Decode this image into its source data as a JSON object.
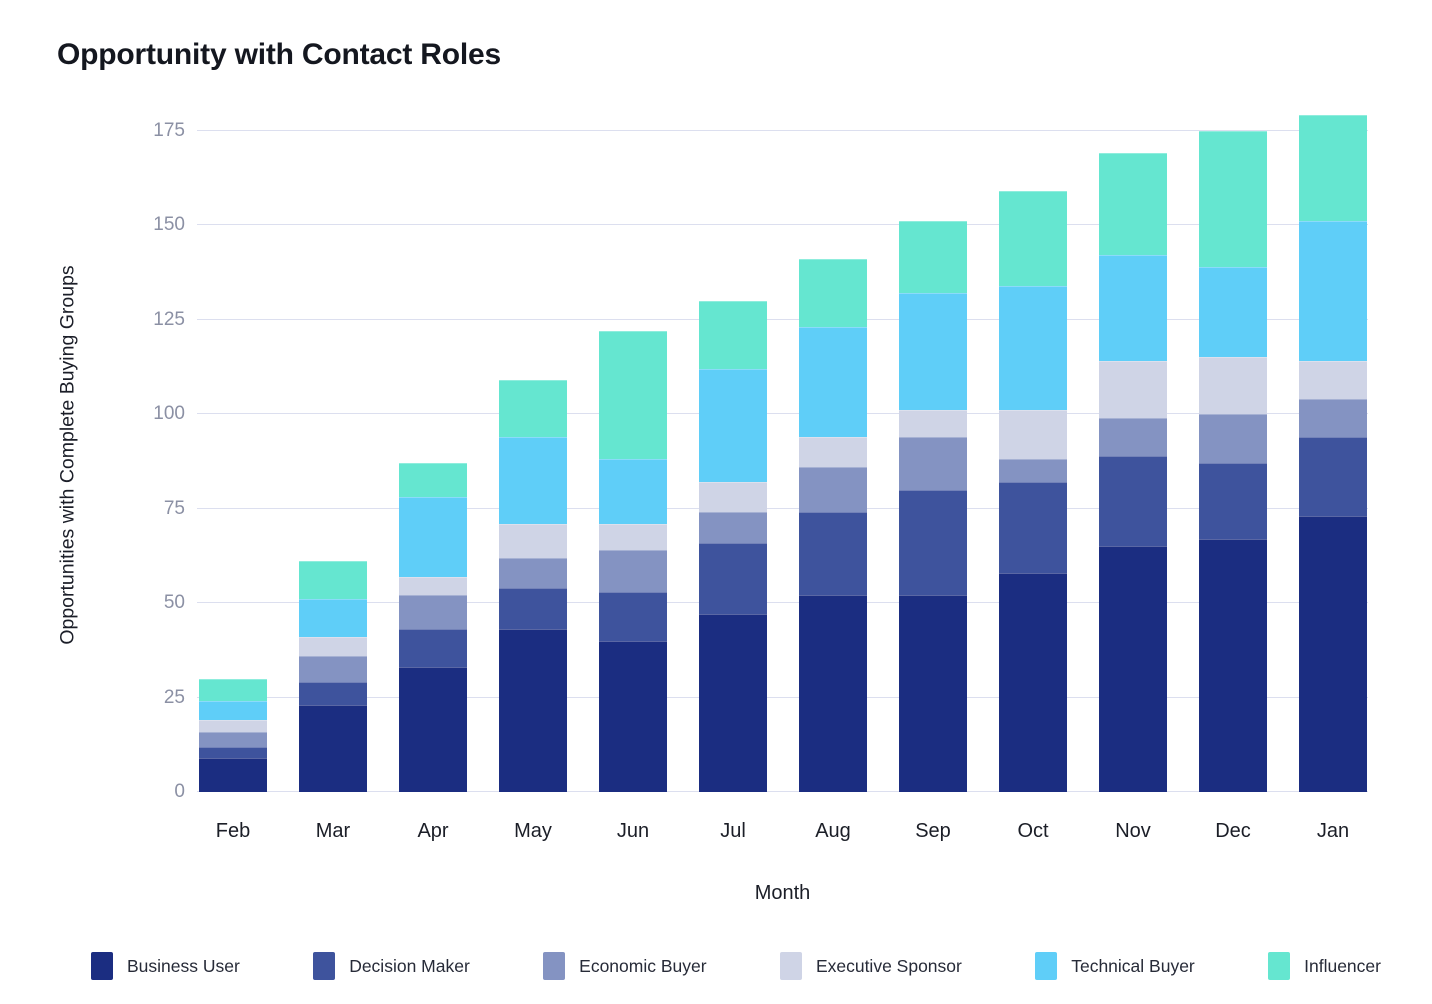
{
  "title": "Opportunity with Contact Roles",
  "chart_data": {
    "type": "bar",
    "stacked": true,
    "title": "Opportunity with Contact Roles",
    "xlabel": "Month",
    "ylabel": "Opportunities with Complete Buying Groups",
    "categories": [
      "Feb",
      "Mar",
      "Apr",
      "May",
      "Jun",
      "Jul",
      "Aug",
      "Sep",
      "Oct",
      "Nov",
      "Dec",
      "Jan"
    ],
    "series": [
      {
        "name": "Business User",
        "color": "#1B2D81",
        "values": [
          9,
          23,
          33,
          43,
          40,
          47,
          52,
          52,
          58,
          65,
          67,
          73
        ]
      },
      {
        "name": "Decision Maker",
        "color": "#3E539D",
        "values": [
          3,
          6,
          10,
          11,
          13,
          19,
          22,
          28,
          24,
          24,
          20,
          21
        ]
      },
      {
        "name": "Economic Buyer",
        "color": "#8493C2",
        "values": [
          4,
          7,
          9,
          8,
          11,
          8,
          12,
          14,
          6,
          10,
          13,
          10
        ]
      },
      {
        "name": "Executive Sponsor",
        "color": "#CFD4E6",
        "values": [
          3,
          5,
          5,
          9,
          7,
          8,
          8,
          7,
          13,
          15,
          15,
          10
        ]
      },
      {
        "name": "Technical Buyer",
        "color": "#5FCEF8",
        "values": [
          5,
          10,
          21,
          23,
          17,
          30,
          29,
          31,
          33,
          28,
          24,
          37
        ]
      },
      {
        "name": "Influencer",
        "color": "#65E6D0",
        "values": [
          6,
          10,
          9,
          15,
          34,
          18,
          18,
          19,
          25,
          27,
          36,
          28
        ]
      }
    ],
    "totals": [
      30,
      61,
      87,
      109,
      122,
      130,
      141,
      151,
      159,
      169,
      175,
      179
    ],
    "ylim": [
      0,
      175
    ],
    "yticks": [
      0,
      25,
      50,
      75,
      100,
      125,
      150,
      175
    ],
    "grid": true,
    "legend_position": "bottom"
  },
  "colors": {
    "background": "#FFFFFF",
    "gridline": "#DCDFEF",
    "y_tick_label": "#8B90A4",
    "x_tick_label": "#1B1E27",
    "title": "#14171F",
    "legend_label": "#272B38"
  }
}
